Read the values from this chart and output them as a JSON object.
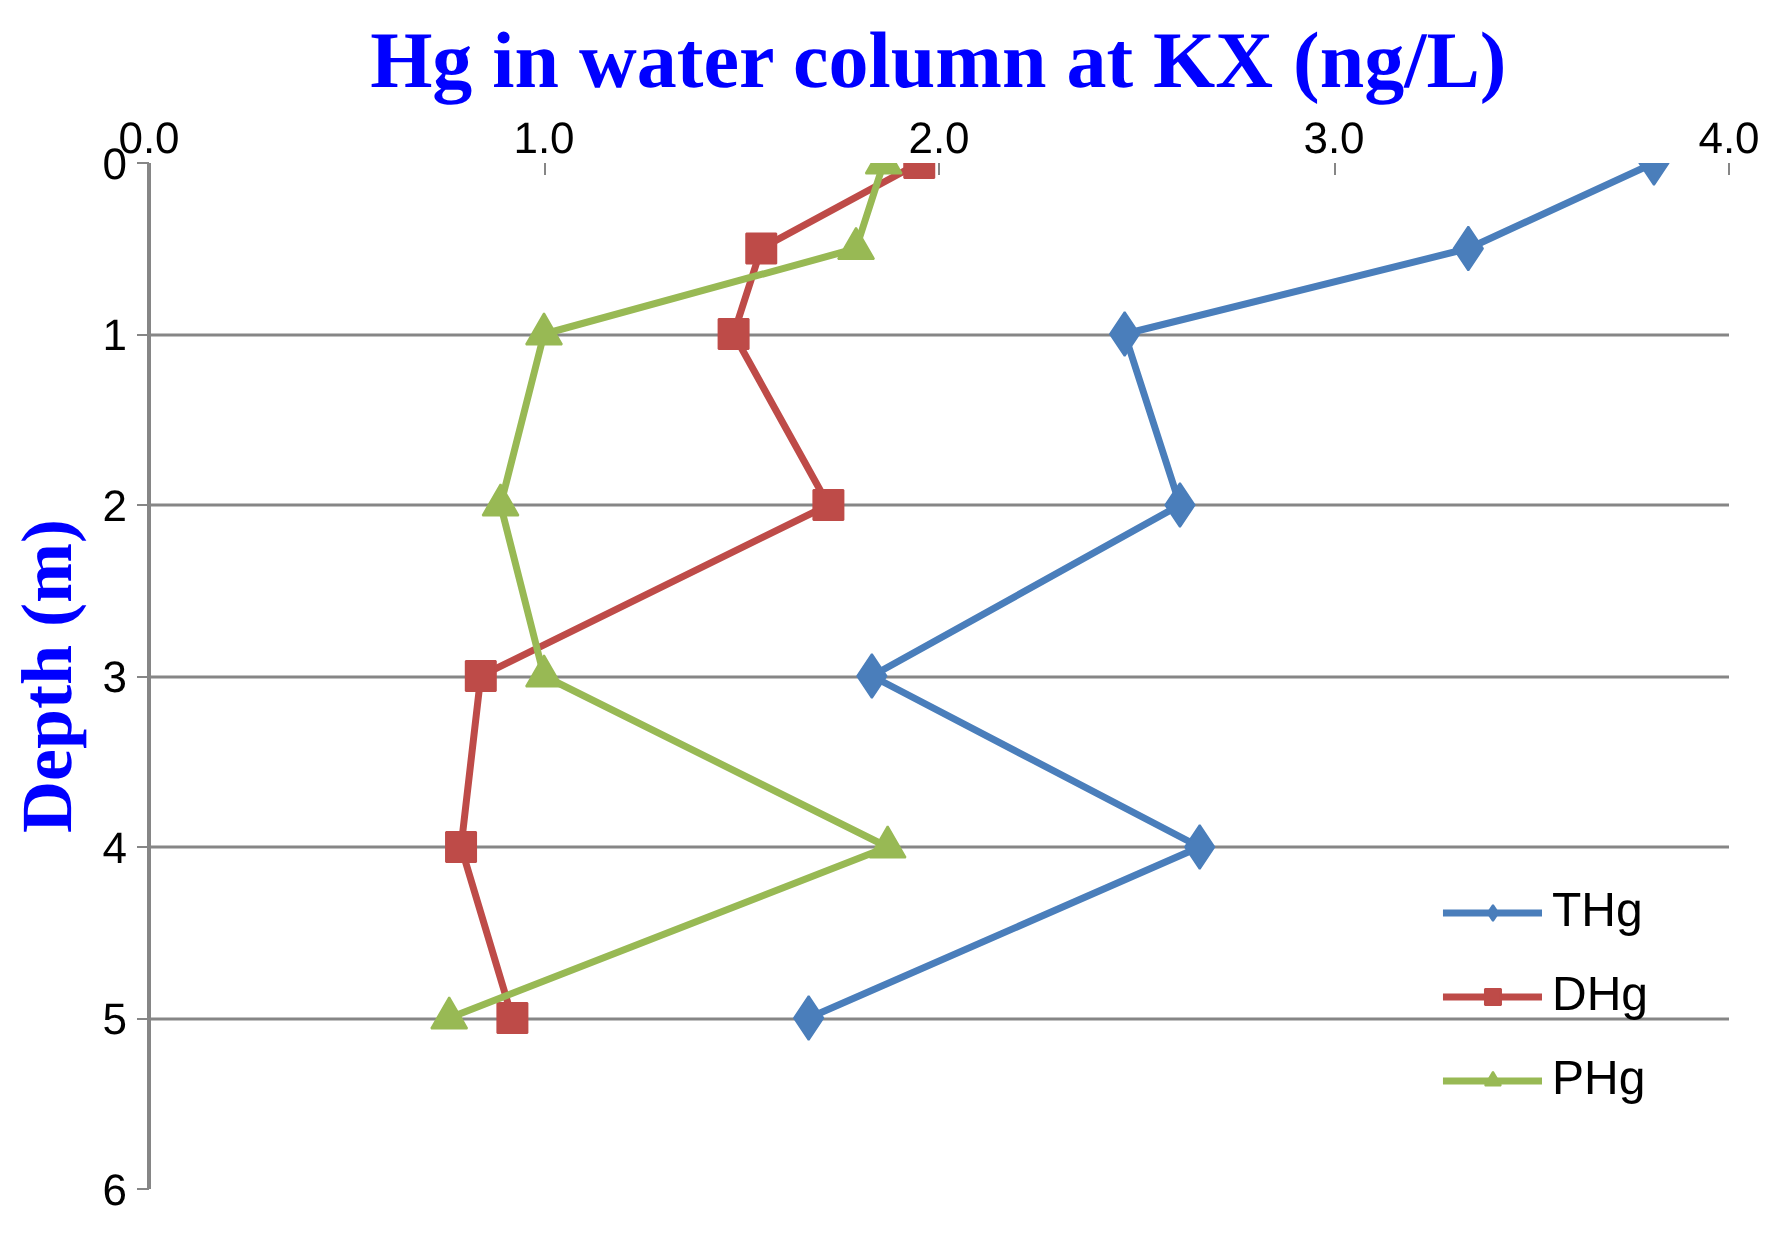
{
  "chart_data": {
    "type": "line",
    "title": "Hg in water column at KX (ng/L)",
    "ylabel": "Depth (m)",
    "xlim": [
      0,
      4
    ],
    "xticks": [
      {
        "value": 0,
        "label": "0.0"
      },
      {
        "value": 1,
        "label": "1.0"
      },
      {
        "value": 2,
        "label": "2.0"
      },
      {
        "value": 3,
        "label": "3.0"
      },
      {
        "value": 4,
        "label": "4.0"
      }
    ],
    "ylim": [
      6,
      0
    ],
    "yticks": [
      0,
      1,
      2,
      3,
      4,
      5,
      6
    ],
    "grid": "y",
    "legend": "bottom right",
    "series": [
      {
        "name": "THg",
        "color": "#4a7ebb",
        "marker": "diamond",
        "x": [
          3.81,
          3.34,
          2.47,
          2.61,
          1.83,
          2.66,
          1.67
        ],
        "values": [
          0,
          0.5,
          1,
          2,
          3,
          4,
          5
        ]
      },
      {
        "name": "DHg",
        "color": "#be4b48",
        "marker": "square",
        "x": [
          1.95,
          1.55,
          1.48,
          1.72,
          0.84,
          0.79,
          0.92
        ],
        "values": [
          0,
          0.5,
          1,
          2,
          3,
          4,
          5
        ]
      },
      {
        "name": "PHg",
        "color": "#98b954",
        "marker": "triangle",
        "x": [
          1.86,
          1.79,
          1.0,
          0.89,
          1.0,
          1.87,
          0.76
        ],
        "values": [
          0,
          0.5,
          1,
          2,
          3,
          4,
          5
        ]
      }
    ]
  }
}
